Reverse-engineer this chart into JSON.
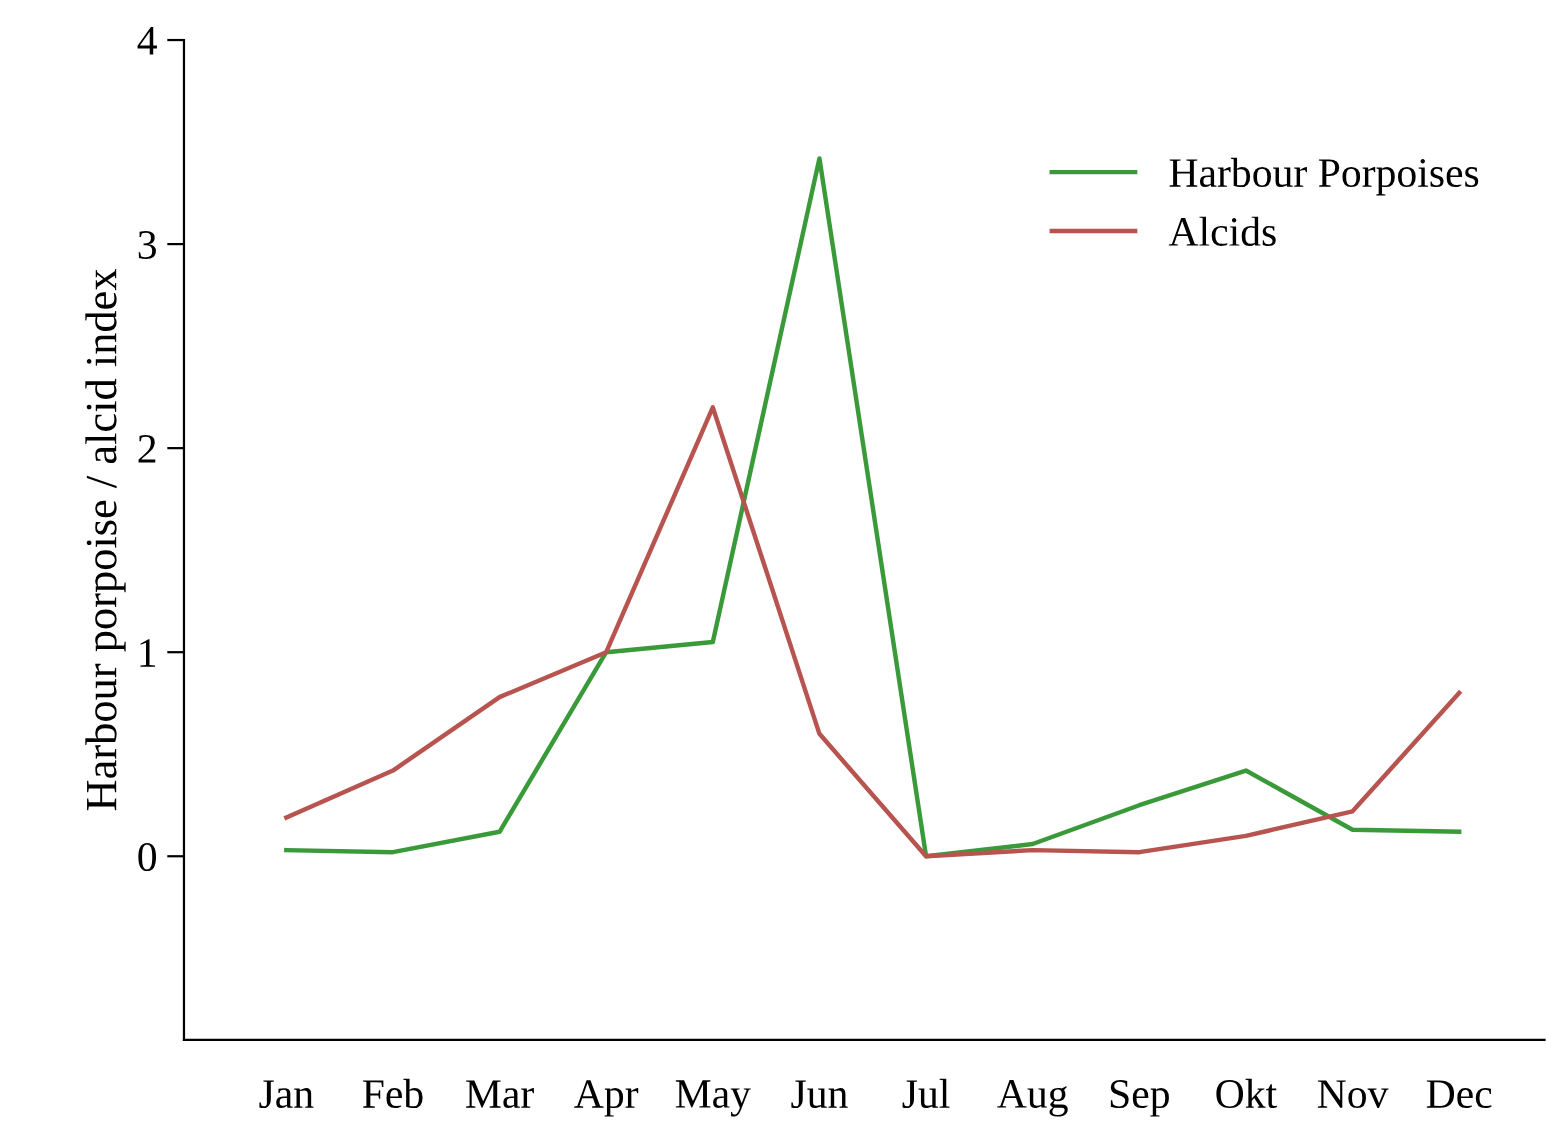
{
  "chart_data": {
    "type": "line",
    "ylabel": "Harbour porpoise / alcid index",
    "categories": [
      "Jan",
      "Feb",
      "Mar",
      "Apr",
      "May",
      "Jun",
      "Jul",
      "Aug",
      "Sep",
      "Okt",
      "Nov",
      "Dec"
    ],
    "series": [
      {
        "name": "Harbour Porpoises",
        "color": "#3a9a3a",
        "values": [
          0.03,
          0.02,
          0.12,
          1.0,
          1.05,
          3.42,
          0.0,
          0.06,
          0.25,
          0.42,
          0.13,
          0.12
        ]
      },
      {
        "name": "Alcids",
        "color": "#b85450",
        "values": [
          0.19,
          0.42,
          0.78,
          1.0,
          2.2,
          0.6,
          0.0,
          0.03,
          0.02,
          0.1,
          0.22,
          0.8
        ]
      }
    ],
    "ylim": [
      -0.9,
      4
    ],
    "yticks": [
      0,
      1,
      2,
      3,
      4
    ],
    "grid": false,
    "legend": "top right",
    "marker": "none",
    "line_style": "solid"
  }
}
